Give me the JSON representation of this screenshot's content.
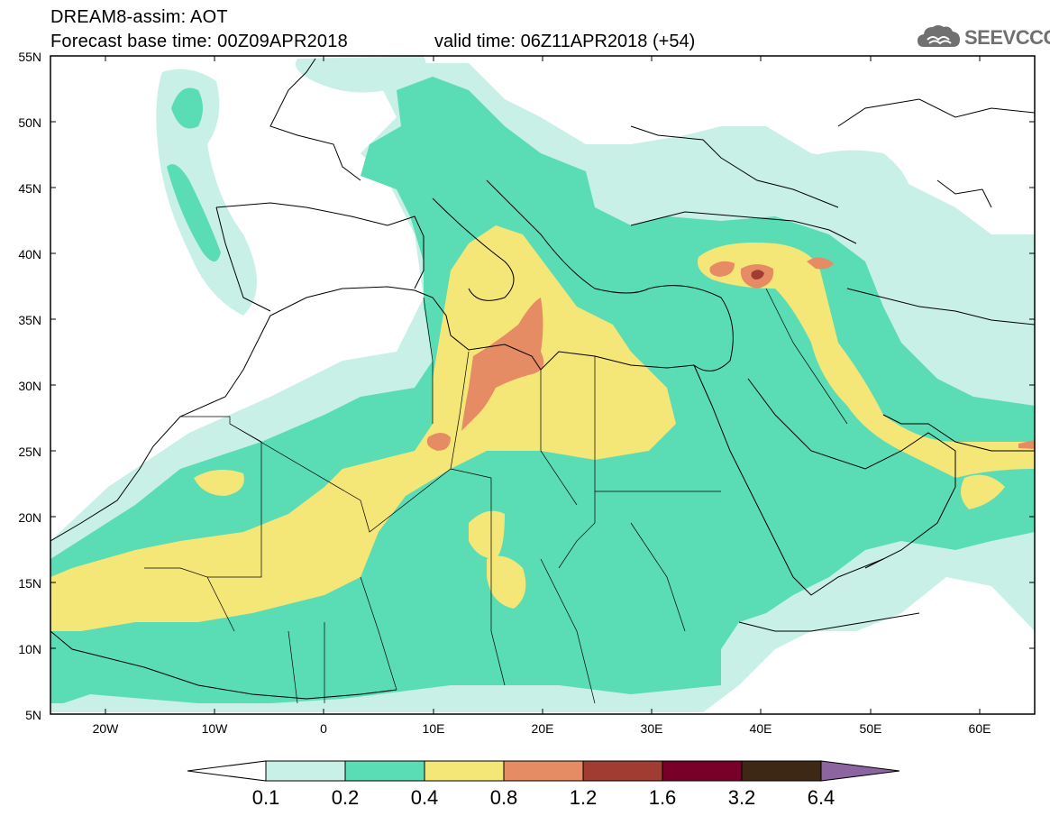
{
  "header": {
    "title_line1": "DREAM8-assim: AOT",
    "title_line2": "Forecast base time: 00Z09APR2018",
    "valid_time": "valid time: 06Z11APR2018 (+54)"
  },
  "logo": {
    "text": "SEEVCCC",
    "icon": "cloud-icon"
  },
  "map": {
    "lat_labels": [
      "55N",
      "50N",
      "45N",
      "40N",
      "35N",
      "30N",
      "25N",
      "20N",
      "15N",
      "10N",
      "5N"
    ],
    "lon_labels": [
      "20W",
      "10W",
      "0",
      "10E",
      "20E",
      "30E",
      "40E",
      "50E",
      "60E"
    ],
    "extent": {
      "lon_min": -25,
      "lon_max": 65,
      "lat_min": 5,
      "lat_max": 55
    }
  },
  "colorbar": {
    "labels": [
      "0.1",
      "0.2",
      "0.4",
      "0.8",
      "1.2",
      "1.6",
      "3.2",
      "6.4"
    ],
    "colors": [
      "#ffffff",
      "#c8f0e6",
      "#5adcb4",
      "#f5e678",
      "#e68c64",
      "#a03c32",
      "#780028",
      "#3c2814",
      "#8c64a0"
    ]
  }
}
